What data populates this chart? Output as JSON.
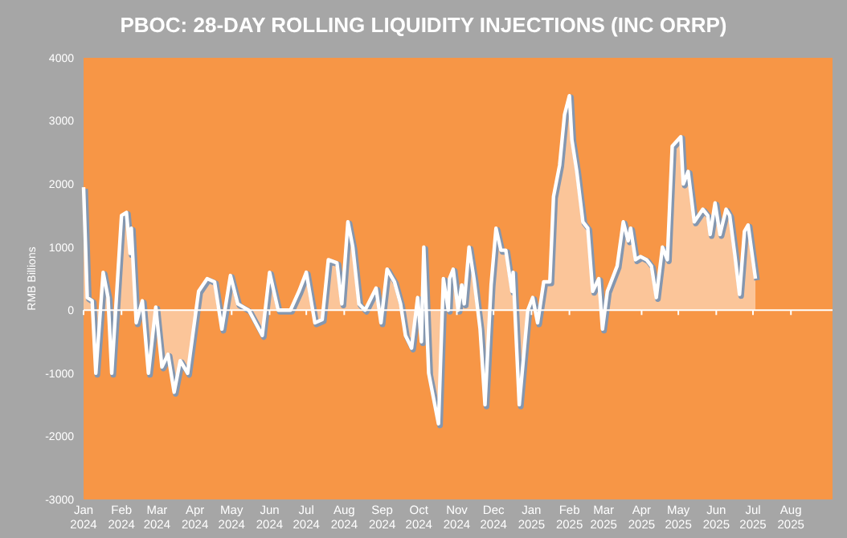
{
  "chart_data": {
    "type": "area",
    "title": "PBOC: 28-DAY ROLLING  LIQUIDITY INJECTIONS (INC ORRP)",
    "ylabel": "RMB Billions",
    "x": [
      "2024-01-01",
      "2024-01-04",
      "2024-01-08",
      "2024-01-11",
      "2024-01-17",
      "2024-01-21",
      "2024-01-24",
      "2024-02-01",
      "2024-02-05",
      "2024-02-08",
      "2024-02-09",
      "2024-02-13",
      "2024-02-18",
      "2024-02-23",
      "2024-02-29",
      "2024-03-05",
      "2024-03-10",
      "2024-03-15",
      "2024-03-20",
      "2024-03-26",
      "2024-04-04",
      "2024-04-11",
      "2024-04-17",
      "2024-04-23",
      "2024-04-30",
      "2024-05-06",
      "2024-05-15",
      "2024-05-26",
      "2024-06-01",
      "2024-06-08",
      "2024-06-18",
      "2024-06-25",
      "2024-07-01",
      "2024-07-08",
      "2024-07-14",
      "2024-07-19",
      "2024-07-26",
      "2024-07-30",
      "2024-08-04",
      "2024-08-08",
      "2024-08-13",
      "2024-08-18",
      "2024-08-27",
      "2024-08-31",
      "2024-09-05",
      "2024-09-11",
      "2024-09-16",
      "2024-09-20",
      "2024-09-25",
      "2024-09-30",
      "2024-10-03",
      "2024-10-05",
      "2024-10-09",
      "2024-10-17",
      "2024-10-21",
      "2024-10-25",
      "2024-10-26",
      "2024-10-29",
      "2024-11-02",
      "2024-11-05",
      "2024-11-07",
      "2024-11-11",
      "2024-11-15",
      "2024-11-20",
      "2024-11-24",
      "2024-11-29",
      "2024-12-03",
      "2024-12-07",
      "2024-12-11",
      "2024-12-16",
      "2024-12-17",
      "2024-12-22",
      "2024-12-29",
      "2025-01-02",
      "2025-01-06",
      "2025-01-11",
      "2025-01-16",
      "2025-01-19",
      "2025-01-24",
      "2025-01-28",
      "2025-02-01",
      "2025-02-03",
      "2025-02-07",
      "2025-02-12",
      "2025-02-16",
      "2025-02-20",
      "2025-02-25",
      "2025-02-28",
      "2025-03-04",
      "2025-03-08",
      "2025-03-12",
      "2025-03-17",
      "2025-03-21",
      "2025-03-23",
      "2025-03-27",
      "2025-03-31",
      "2025-04-05",
      "2025-04-09",
      "2025-04-13",
      "2025-04-18",
      "2025-04-22",
      "2025-04-26",
      "2025-05-03",
      "2025-05-05",
      "2025-05-09",
      "2025-05-14",
      "2025-05-21",
      "2025-05-25",
      "2025-05-27",
      "2025-05-31",
      "2025-06-04",
      "2025-06-09",
      "2025-06-12",
      "2025-06-16",
      "2025-06-20",
      "2025-06-24",
      "2025-06-27",
      "2025-07-03"
    ],
    "series": [
      {
        "color": "#ffffff",
        "values": [
          1950,
          200,
          150,
          -1000,
          600,
          200,
          -1000,
          1500,
          1550,
          900,
          1300,
          -200,
          150,
          -1000,
          50,
          -900,
          -700,
          -1300,
          -800,
          -1000,
          300,
          500,
          450,
          -300,
          550,
          100,
          0,
          -400,
          600,
          0,
          0,
          300,
          600,
          -200,
          -150,
          800,
          750,
          100,
          1400,
          1000,
          100,
          0,
          350,
          -200,
          650,
          450,
          100,
          -400,
          -600,
          200,
          -500,
          1000,
          -1000,
          -1800,
          500,
          0,
          500,
          650,
          0,
          400,
          100,
          1000,
          500,
          -300,
          -1500,
          400,
          1300,
          950,
          950,
          300,
          600,
          -1500,
          0,
          200,
          -200,
          450,
          450,
          1800,
          2300,
          3100,
          3400,
          2700,
          2200,
          1400,
          1300,
          300,
          500,
          -300,
          300,
          500,
          700,
          1400,
          1100,
          1300,
          800,
          850,
          800,
          700,
          200,
          1000,
          800,
          2600,
          2750,
          2000,
          2200,
          1400,
          1600,
          1500,
          1200,
          1700,
          1200,
          1600,
          1500,
          900,
          250,
          1250,
          1350,
          500
        ]
      }
    ],
    "xlim": [
      "2024-01-01",
      "2025-09-04"
    ],
    "xticks": [
      {
        "value": "2024-01-01",
        "label": "Jan 2024"
      },
      {
        "value": "2024-02-01",
        "label": "Feb 2024"
      },
      {
        "value": "2024-03-01",
        "label": "Mar 2024"
      },
      {
        "value": "2024-04-01",
        "label": "Apr 2024"
      },
      {
        "value": "2024-05-01",
        "label": "May 2024"
      },
      {
        "value": "2024-06-01",
        "label": "Jun 2024"
      },
      {
        "value": "2024-07-01",
        "label": "Jul 2024"
      },
      {
        "value": "2024-08-01",
        "label": "Aug 2024"
      },
      {
        "value": "2024-09-01",
        "label": "Sep 2024"
      },
      {
        "value": "2024-10-01",
        "label": "Oct 2024"
      },
      {
        "value": "2024-11-01",
        "label": "Nov 2024"
      },
      {
        "value": "2024-12-01",
        "label": "Dec 2024"
      },
      {
        "value": "2025-01-01",
        "label": "Jan 2025"
      },
      {
        "value": "2025-02-01",
        "label": "Feb 2025"
      },
      {
        "value": "2025-03-01",
        "label": "Mar 2025"
      },
      {
        "value": "2025-04-01",
        "label": "Apr 2025"
      },
      {
        "value": "2025-05-01",
        "label": "May 2025"
      },
      {
        "value": "2025-06-01",
        "label": "Jun 2025"
      },
      {
        "value": "2025-07-01",
        "label": "Jul 2025"
      },
      {
        "value": "2025-08-01",
        "label": "Aug 2025"
      }
    ],
    "ylim": [
      -3000,
      4000
    ],
    "yticks": [
      -3000,
      -2000,
      -1000,
      0,
      1000,
      2000,
      3000,
      4000
    ]
  }
}
